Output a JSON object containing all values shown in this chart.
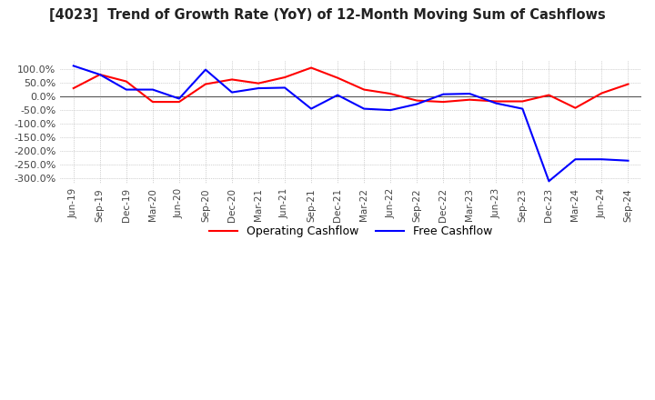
{
  "title": "[4023]  Trend of Growth Rate (YoY) of 12-Month Moving Sum of Cashflows",
  "ylim": [
    -320,
    130
  ],
  "yticks": [
    100,
    50,
    0,
    -50,
    -100,
    -150,
    -200,
    -250,
    -300
  ],
  "legend_labels": [
    "Operating Cashflow",
    "Free Cashflow"
  ],
  "line_colors": [
    "#ff0000",
    "#0000ff"
  ],
  "background_color": "#ffffff",
  "plot_bg_color": "#ffffff",
  "x_labels": [
    "Jun-19",
    "Sep-19",
    "Dec-19",
    "Mar-20",
    "Jun-20",
    "Sep-20",
    "Dec-20",
    "Mar-21",
    "Jun-21",
    "Sep-21",
    "Dec-21",
    "Mar-22",
    "Jun-22",
    "Sep-22",
    "Dec-22",
    "Mar-23",
    "Jun-23",
    "Sep-23",
    "Dec-23",
    "Mar-24",
    "Jun-24",
    "Sep-24"
  ],
  "operating_cashflow": [
    30,
    80,
    55,
    -20,
    -20,
    45,
    62,
    48,
    70,
    105,
    68,
    25,
    10,
    -15,
    -20,
    -12,
    -18,
    -18,
    5,
    -42,
    12,
    45
  ],
  "free_cashflow": [
    112,
    80,
    25,
    25,
    -8,
    98,
    15,
    30,
    32,
    -45,
    5,
    -45,
    -50,
    -28,
    8,
    10,
    -25,
    -45,
    -310,
    -230,
    -230,
    -235
  ]
}
